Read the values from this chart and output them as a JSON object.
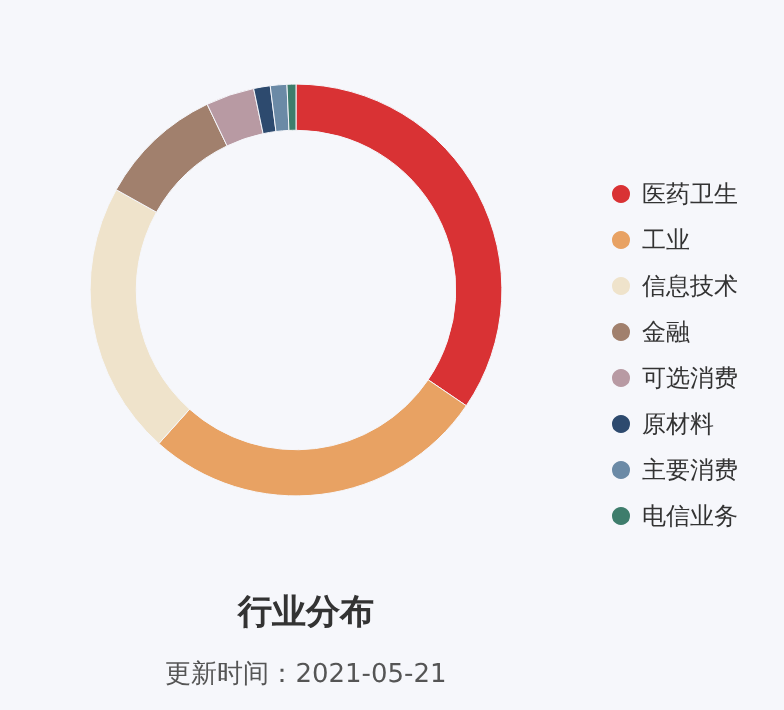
{
  "chart_data": {
    "type": "donut",
    "title": "行业分布",
    "subtitle": "更新时间：2021-05-21",
    "categories": [
      "医药卫生",
      "工业",
      "信息技术",
      "金融",
      "可选消费",
      "原材料",
      "主要消费",
      "电信业务"
    ],
    "values": [
      34.5,
      27.1,
      21.5,
      9.8,
      3.8,
      1.3,
      1.3,
      0.7
    ],
    "colors": [
      "#d93234",
      "#e8a263",
      "#efe3cb",
      "#a1806d",
      "#b89aa3",
      "#2d4a6e",
      "#6b8aa6",
      "#3e7d6c"
    ],
    "legend": "right"
  }
}
